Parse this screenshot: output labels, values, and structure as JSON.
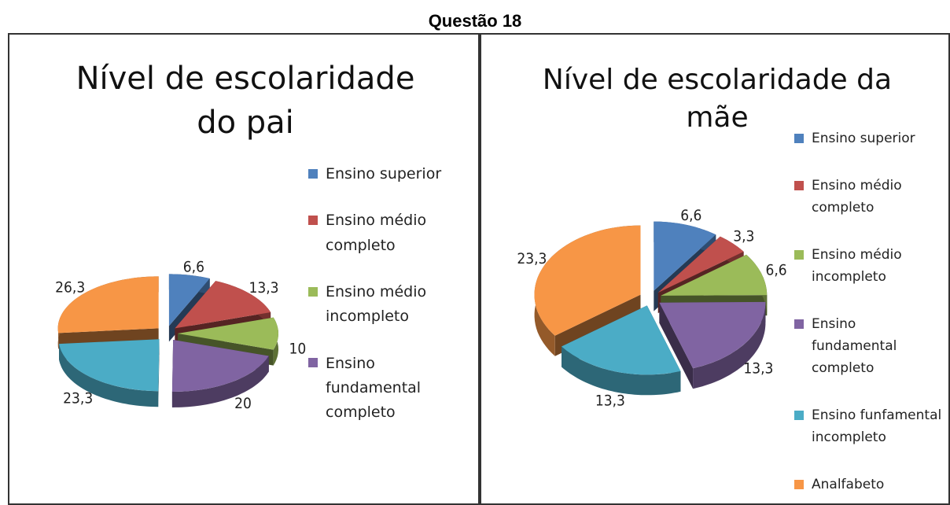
{
  "title": "Questão 18",
  "chart_data": [
    {
      "type": "pie",
      "title": "Nível de escolaridade do pai",
      "categories": [
        "Ensino superior",
        "Ensino médio completo",
        "Ensino médio incompleto",
        "Ensino fundamental completo",
        null,
        null
      ],
      "values": [
        6.6,
        13.3,
        10,
        20,
        23.3,
        26.3
      ],
      "value_labels": [
        "6,6",
        "13,3",
        "10",
        "20",
        "23,3",
        "26,3"
      ],
      "colors": [
        "#4f81bd",
        "#c0504d",
        "#9bbb59",
        "#8064a2",
        "#4bacc6",
        "#f79646"
      ]
    },
    {
      "type": "pie",
      "title": "Nível de escolaridade da mãe",
      "categories": [
        "Ensino superior",
        "Ensino médio completo",
        "Ensino médio incompleto",
        "Ensino fundamental completo",
        "Ensino funfamental incompleto",
        "Analfabeto"
      ],
      "values": [
        6.6,
        3.3,
        6.6,
        13.3,
        13.3,
        23.3
      ],
      "value_labels": [
        "6,6",
        "3,3",
        "6,6",
        "13,3",
        "13,3",
        "23,3"
      ],
      "colors": [
        "#4f81bd",
        "#c0504d",
        "#9bbb59",
        "#8064a2",
        "#4bacc6",
        "#f79646"
      ]
    }
  ]
}
